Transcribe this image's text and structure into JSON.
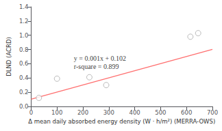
{
  "chart_data": {
    "type": "scatter",
    "xlabel": "Δ mean daily absorbed energy density (W · h/m²) (MERRA-OWS)",
    "ylabel": "DLND (ACRD)",
    "series": [
      {
        "type": "scatter",
        "x": [
          30,
          100,
          225,
          290,
          615,
          645
        ],
        "values": [
          0.12,
          0.39,
          0.41,
          0.3,
          0.98,
          1.03
        ],
        "color": "#aaaaaa",
        "marker": "open"
      },
      {
        "type": "line",
        "x": [
          0,
          700
        ],
        "values": [
          0.102,
          0.802
        ],
        "color": "#ff7070",
        "line_style": "solid"
      }
    ],
    "annotations": [
      {
        "text": "y = 0.001x + 0.102\nr-square = 0.899",
        "x": 165,
        "y": 0.62
      }
    ],
    "xlim": [
      0,
      700
    ],
    "ylim": [
      0,
      1.4
    ],
    "xticks": [
      0,
      100,
      200,
      300,
      400,
      500,
      600,
      700
    ],
    "yticks": [
      {
        "value": 0,
        "label": "0.0"
      },
      0.2,
      0.4,
      0.6,
      0.8,
      {
        "value": 1,
        "label": "1.0"
      },
      1.2,
      1.4
    ],
    "grid": false
  }
}
